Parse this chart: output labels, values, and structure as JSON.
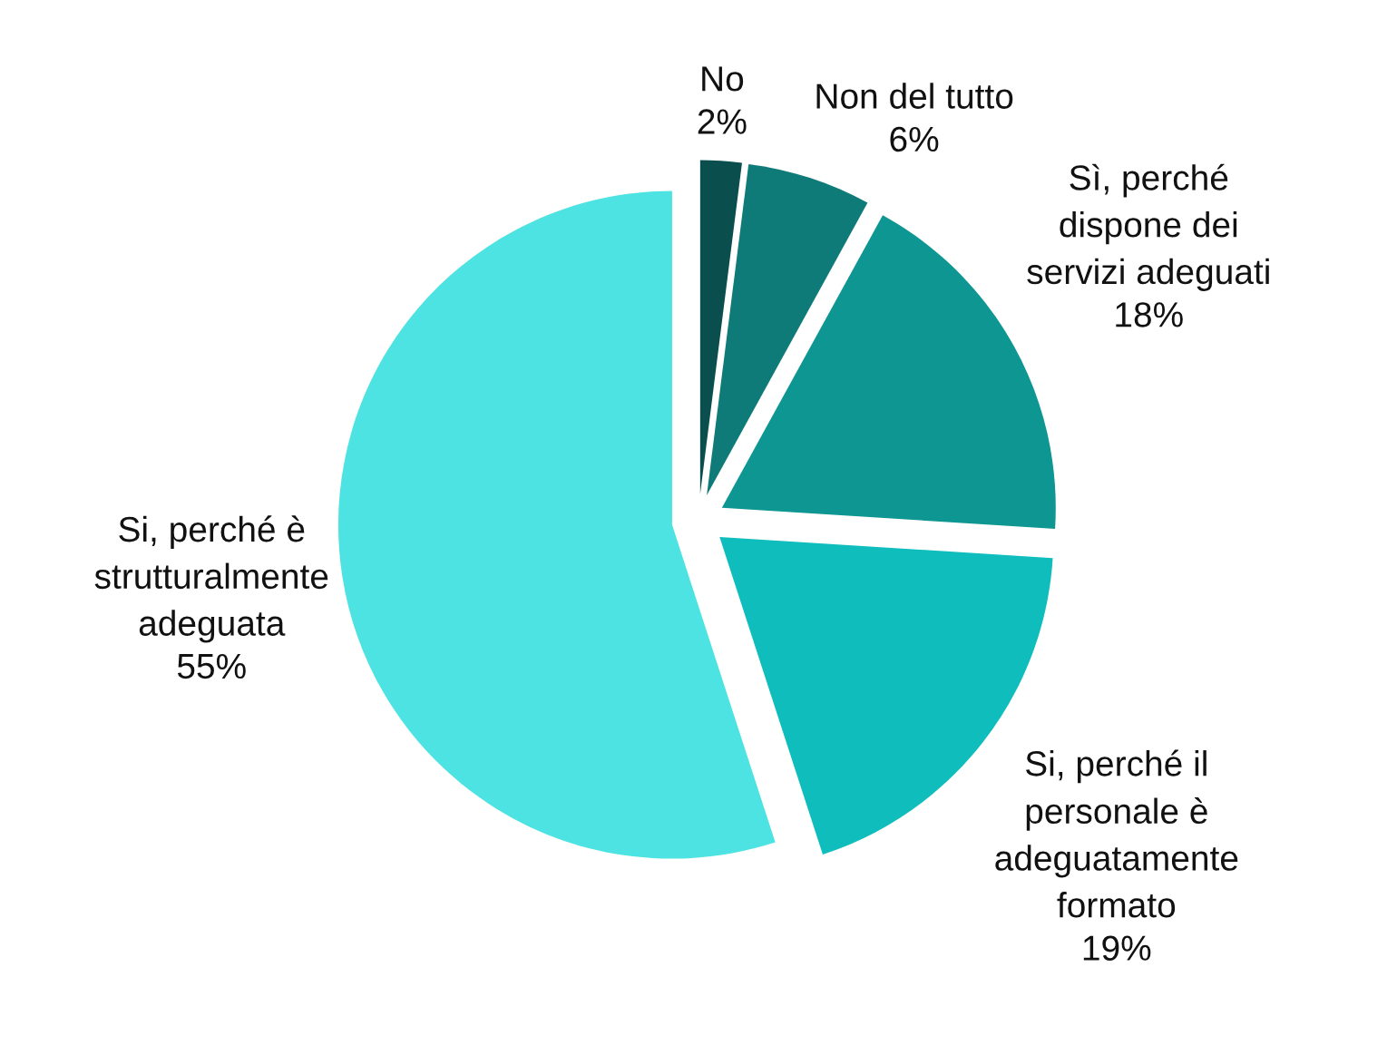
{
  "chart_data": {
    "type": "pie",
    "categories": [
      "No",
      "Non del tutto",
      "Sì, perché\ndispone dei\nservizi adeguati",
      "Si, perché il\npersonale è\nadeguatamente\nformato",
      "Si, perché è\nstrutturalmente\nadeguata"
    ],
    "values": [
      2,
      6,
      18,
      19,
      55
    ],
    "value_labels": [
      "2%",
      "6%",
      "18%",
      "19%",
      "55%"
    ],
    "colors": [
      "#0a4e4d",
      "#0f7b78",
      "#0e9693",
      "#0fbdbd",
      "#4de3e2"
    ]
  }
}
